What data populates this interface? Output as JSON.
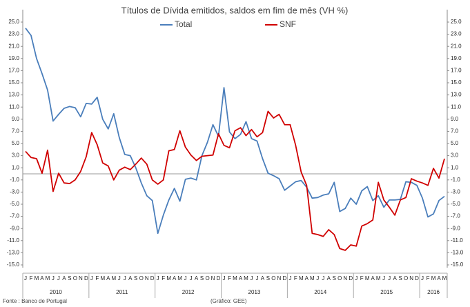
{
  "chart_data": {
    "type": "line",
    "title": "Títulos de Dívida emitidos, saldos em fim de mês  (VH %)",
    "source": "Fonte : Banco de Portugal",
    "credit": "(Gráfico: GEE)",
    "categories": [
      "J",
      "F",
      "M",
      "A",
      "M",
      "J",
      "J",
      "A",
      "S",
      "O",
      "N",
      "D",
      "J",
      "F",
      "M",
      "A",
      "M",
      "J",
      "J",
      "A",
      "S",
      "O",
      "N",
      "D",
      "J",
      "F",
      "M",
      "A",
      "M",
      "J",
      "J",
      "A",
      "S",
      "O",
      "N",
      "D",
      "J",
      "F",
      "M",
      "A",
      "M",
      "J",
      "J",
      "A",
      "S",
      "O",
      "N",
      "D",
      "J",
      "F",
      "M",
      "A",
      "M",
      "J",
      "J",
      "A",
      "S",
      "O",
      "N",
      "D",
      "J",
      "F",
      "M",
      "A",
      "M",
      "J",
      "J",
      "A",
      "S",
      "O",
      "N",
      "D",
      "J",
      "F",
      "M",
      "A",
      "M"
    ],
    "years": [
      "2010",
      "2011",
      "2012",
      "2013",
      "2014",
      "2015",
      "2016"
    ],
    "series": [
      {
        "name": "Total",
        "color": "#4a7ebb",
        "values": [
          24.0,
          22.8,
          19.0,
          16.5,
          13.8,
          8.7,
          9.8,
          10.8,
          11.1,
          10.9,
          9.4,
          11.6,
          11.5,
          12.6,
          9.0,
          7.4,
          9.9,
          6.0,
          3.2,
          3.0,
          1.0,
          -1.5,
          -3.6,
          -4.4,
          -9.8,
          -6.8,
          -4.3,
          -2.4,
          -4.5,
          -0.9,
          -0.7,
          -1.0,
          3.0,
          5.2,
          8.1,
          6.2,
          14.2,
          6.9,
          5.8,
          6.5,
          8.6,
          5.8,
          5.4,
          2.5,
          0.1,
          -0.3,
          -0.8,
          -2.7,
          -2.0,
          -1.3,
          -1.1,
          -2.2,
          -4.0,
          -3.9,
          -3.5,
          -3.3,
          -1.4,
          -6.2,
          -5.7,
          -4.0,
          -5.0,
          -2.8,
          -2.1,
          -4.4,
          -3.6,
          -5.5,
          -4.3,
          -4.3,
          -4.2,
          -1.3,
          -1.4,
          -1.9,
          -4.0,
          -7.1,
          -6.6,
          -4.4,
          -3.7
        ]
      },
      {
        "name": "SNF",
        "color": "#d00000",
        "axis": "y2",
        "values": [
          3.7,
          2.7,
          2.5,
          0.1,
          3.9,
          -2.9,
          0.1,
          -1.5,
          -1.6,
          -1.0,
          0.4,
          2.8,
          6.8,
          4.8,
          1.8,
          1.3,
          -1.0,
          0.6,
          1.1,
          0.7,
          1.6,
          2.6,
          1.6,
          -1.0,
          -1.7,
          -1.0,
          3.8,
          4.0,
          7.1,
          4.4,
          3.1,
          2.2,
          2.9,
          3.0,
          3.1,
          6.6,
          4.7,
          4.3,
          7.1,
          7.6,
          6.3,
          7.3,
          6.1,
          6.8,
          10.3,
          9.2,
          9.8,
          8.1,
          8.1,
          4.7,
          0.3,
          -1.9,
          -9.8,
          -10.0,
          -10.3,
          -9.2,
          -10.0,
          -12.3,
          -12.6,
          -11.7,
          -11.9,
          -8.6,
          -8.2,
          -7.6,
          -1.4,
          -4.3,
          -5.5,
          -6.8,
          -4.3,
          -3.9,
          -0.8,
          -1.2,
          -1.5,
          -1.9,
          0.9,
          -0.7,
          2.5
        ]
      }
    ],
    "ylim": [
      -15,
      25
    ],
    "yticks": [
      {
        "value": 25,
        "label": "25.0"
      },
      {
        "value": 23,
        "label": "23.0"
      },
      {
        "value": 21,
        "label": "21.0"
      },
      {
        "value": 19,
        "label": "19.0"
      },
      {
        "value": 17,
        "label": "17.0"
      },
      {
        "value": 15,
        "label": "15.0"
      },
      {
        "value": 13,
        "label": "13.0"
      },
      {
        "value": 11,
        "label": "11.0"
      },
      {
        "value": 9,
        "label": "9.0"
      },
      {
        "value": 7,
        "label": "7.0"
      },
      {
        "value": 5,
        "label": "5.0"
      },
      {
        "value": 3,
        "label": "3.0"
      },
      {
        "value": 1,
        "label": "1.0"
      },
      {
        "value": -1,
        "label": "-1.0"
      },
      {
        "value": -3,
        "label": "-3.0"
      },
      {
        "value": -5,
        "label": "-5.0"
      },
      {
        "value": -7,
        "label": "-7.0"
      },
      {
        "value": -9,
        "label": "-9.0"
      },
      {
        "value": -11,
        "label": "-11.0"
      },
      {
        "value": -13,
        "label": "-13.0"
      },
      {
        "value": -15,
        "label": "-15.0"
      }
    ],
    "y2lim": [
      -15,
      25
    ],
    "y2ticks": [
      {
        "value": 25,
        "label": "25.0"
      },
      {
        "value": 23,
        "label": "23.0"
      },
      {
        "value": 21,
        "label": "21.0"
      },
      {
        "value": 19,
        "label": "19.0"
      },
      {
        "value": 17,
        "label": "17.0"
      },
      {
        "value": 15,
        "label": "15.0"
      },
      {
        "value": 13,
        "label": "13.0"
      },
      {
        "value": 11,
        "label": "11.0"
      },
      {
        "value": 9,
        "label": "9.0"
      },
      {
        "value": 7,
        "label": "7.0"
      },
      {
        "value": 5,
        "label": "5.0"
      },
      {
        "value": 3,
        "label": "3.0"
      },
      {
        "value": 1,
        "label": "1.0"
      },
      {
        "value": -1,
        "label": "-1.0"
      },
      {
        "value": -3,
        "label": "-3.0"
      },
      {
        "value": -5,
        "label": "-5.0"
      },
      {
        "value": -7,
        "label": "-7.0"
      },
      {
        "value": -9,
        "label": "-9.0"
      },
      {
        "value": -11,
        "label": "-11.0"
      },
      {
        "value": -13,
        "label": "-13.0"
      },
      {
        "value": -15,
        "label": "-15.0"
      }
    ],
    "grid": false
  }
}
